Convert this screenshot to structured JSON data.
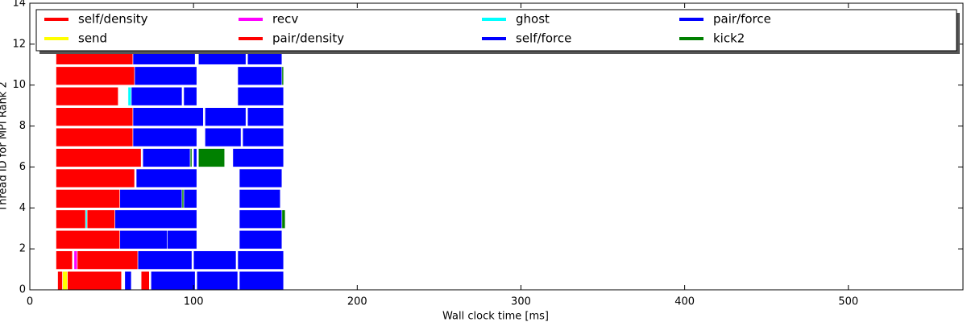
{
  "chart_data": {
    "type": "timeline",
    "xlabel": "Wall clock time [ms]",
    "ylabel": "Thread ID for MPI Rank 2",
    "xlim": [
      0,
      570
    ],
    "ylim": [
      0,
      14
    ],
    "xticks": [
      0,
      100,
      200,
      300,
      400,
      500
    ],
    "yticks": [
      0,
      2,
      4,
      6,
      8,
      10,
      12,
      14
    ],
    "series": [
      {
        "name": "self/density",
        "color": "#ff0000",
        "threads": [
          0
        ],
        "starts": [
          17
        ],
        "ends": [
          20
        ]
      },
      {
        "name": "send",
        "color": "#ffff00",
        "threads": [
          0
        ],
        "starts": [
          20
        ],
        "ends": [
          23
        ]
      },
      {
        "name": "recv",
        "color": "#ff00ff",
        "threads": [
          1
        ],
        "starts": [
          27
        ],
        "ends": [
          29
        ]
      },
      {
        "name": "pair/density",
        "color": "#ff0000",
        "threads": [
          0,
          0,
          1,
          1,
          2,
          3,
          4,
          5,
          6,
          7,
          8,
          9,
          10,
          11
        ],
        "starts": [
          23,
          68,
          16,
          29,
          16,
          16,
          16,
          16,
          16,
          16,
          16,
          16,
          16,
          16
        ],
        "ends": [
          56,
          73,
          26,
          66,
          55,
          52,
          55,
          64,
          68,
          63,
          63,
          54,
          64,
          63
        ]
      },
      {
        "name": "ghost",
        "color": "#00ffff",
        "threads": [
          3,
          9
        ],
        "starts": [
          34,
          60
        ],
        "ends": [
          35,
          62
        ]
      },
      {
        "name": "self/force",
        "color": "#0000ff",
        "threads": [
          0,
          1
        ],
        "starts": [
          58,
          100
        ],
        "ends": [
          62,
          126
        ]
      },
      {
        "name": "pair/force",
        "color": "#0000ff",
        "threads": [
          0,
          0,
          0,
          1,
          1,
          2,
          2,
          2,
          3,
          3,
          4,
          4,
          4,
          5,
          5,
          6,
          6,
          6,
          7,
          7,
          7,
          8,
          8,
          8,
          9,
          9,
          9,
          10,
          10,
          11,
          11,
          11
        ],
        "starts": [
          74,
          102,
          128,
          66,
          127,
          55,
          84,
          128,
          52,
          128,
          55,
          94,
          128,
          65,
          128,
          69,
          100,
          124,
          63,
          107,
          130,
          63,
          107,
          133,
          62,
          94,
          127,
          64,
          127,
          63,
          103,
          133
        ],
        "ends": [
          101,
          127,
          155,
          99,
          155,
          84,
          102,
          154,
          102,
          154,
          93,
          102,
          153,
          102,
          154,
          98,
          102,
          155,
          102,
          129,
          155,
          106,
          132,
          155,
          93,
          102,
          155,
          102,
          154,
          101,
          132,
          154
        ]
      },
      {
        "name": "kick2",
        "color": "#008000",
        "threads": [
          3,
          4,
          6,
          6,
          10
        ],
        "starts": [
          154,
          93,
          98,
          103,
          154
        ],
        "ends": [
          156,
          94,
          99,
          119,
          155
        ]
      }
    ]
  }
}
